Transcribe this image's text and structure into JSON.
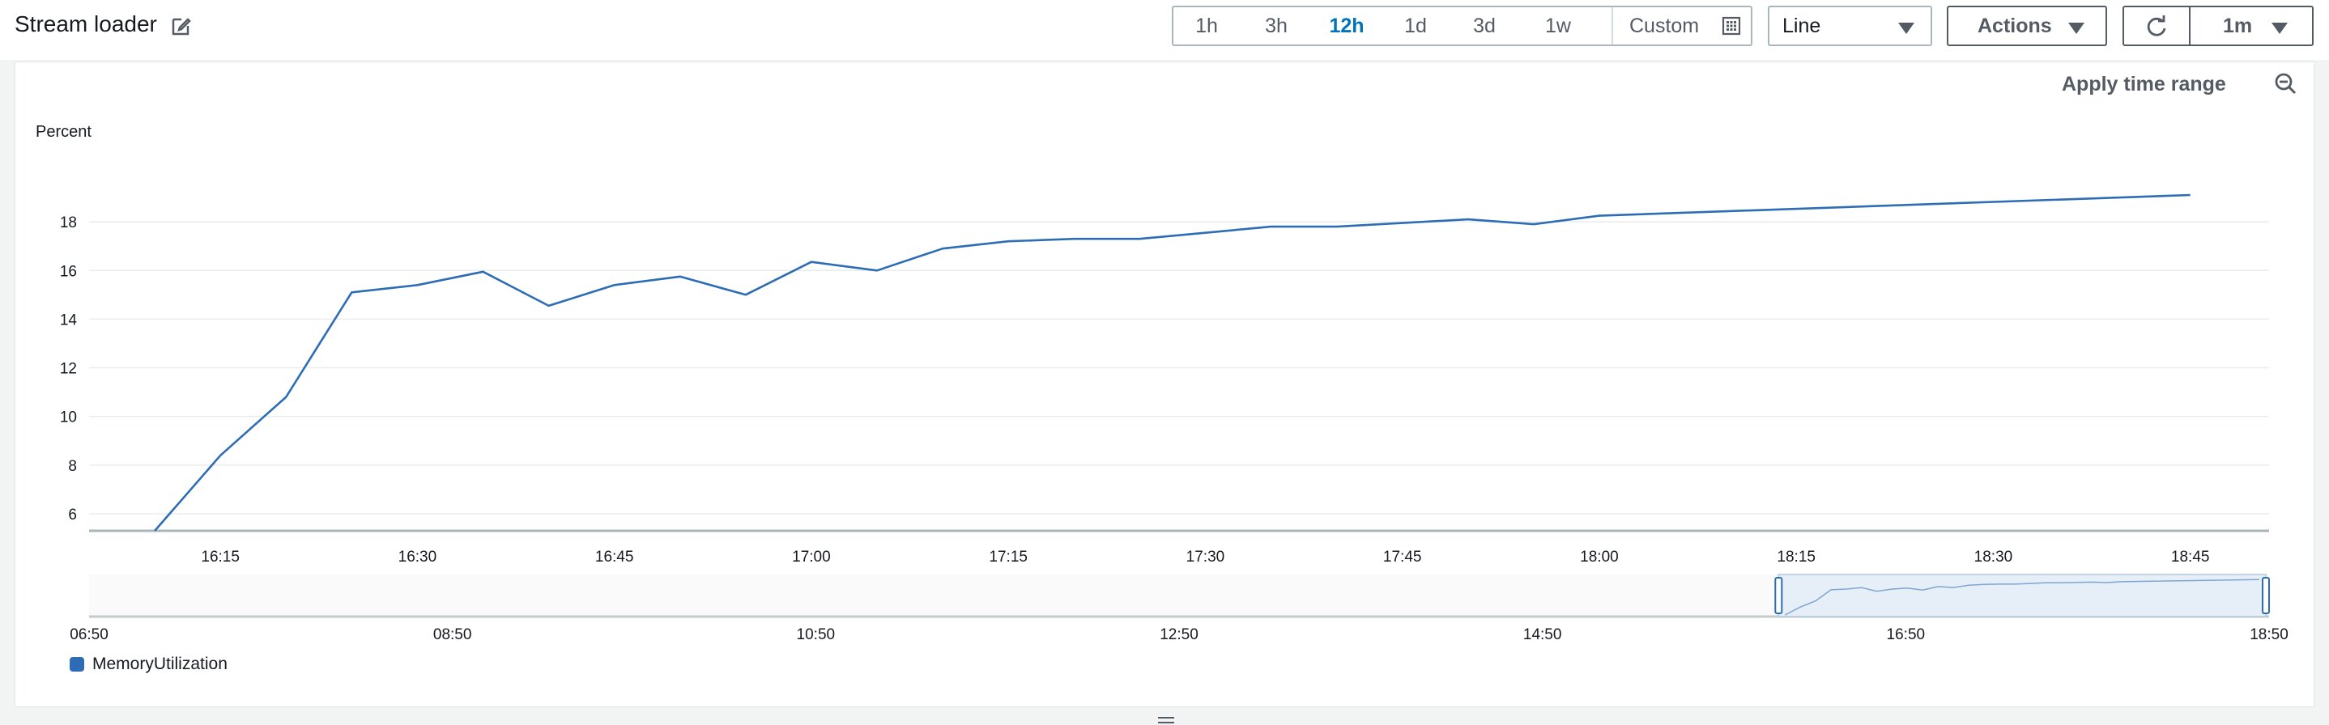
{
  "header": {
    "title": "Stream loader",
    "time_ranges": [
      "1h",
      "3h",
      "12h",
      "1d",
      "3d",
      "1w"
    ],
    "active_range": "12h",
    "custom_label": "Custom",
    "view_select": "Line",
    "actions_label": "Actions",
    "interval_label": "1m"
  },
  "panel": {
    "apply_time_range_label": "Apply time range",
    "legend_label": "MemoryUtilization",
    "legend_color": "#2e6db5"
  },
  "chart_data": {
    "type": "line",
    "ylabel": "Percent",
    "xlabel": "",
    "ylim": [
      5.3,
      19.8
    ],
    "yticks": [
      6,
      8,
      10,
      12,
      14,
      16,
      18
    ],
    "x_tick_labels": [
      "16:15",
      "16:30",
      "16:45",
      "17:00",
      "17:15",
      "17:30",
      "17:45",
      "18:00",
      "18:15",
      "18:30",
      "18:45"
    ],
    "x_range_minutes": [
      965,
      1131
    ],
    "grid": true,
    "line_color": "#2e6db5",
    "series": [
      {
        "name": "MemoryUtilization",
        "x": [
          "16:10",
          "16:15",
          "16:20",
          "16:25",
          "16:30",
          "16:35",
          "16:40",
          "16:45",
          "16:50",
          "16:55",
          "17:00",
          "17:05",
          "17:10",
          "17:15",
          "17:20",
          "17:25",
          "17:30",
          "17:35",
          "17:40",
          "17:45",
          "17:50",
          "17:55",
          "18:00",
          "18:45"
        ],
        "values": [
          5.3,
          8.4,
          10.8,
          15.1,
          15.4,
          15.95,
          14.55,
          15.4,
          15.75,
          15.0,
          16.35,
          16.0,
          16.9,
          17.2,
          17.3,
          17.3,
          17.55,
          17.8,
          17.8,
          17.95,
          18.1,
          17.9,
          18.25,
          19.1
        ]
      }
    ],
    "navigator": {
      "x_tick_labels": [
        "06:50",
        "08:50",
        "10:50",
        "12:50",
        "14:50",
        "16:50",
        "18:50"
      ],
      "selection": [
        "16:08",
        "18:50"
      ]
    }
  }
}
